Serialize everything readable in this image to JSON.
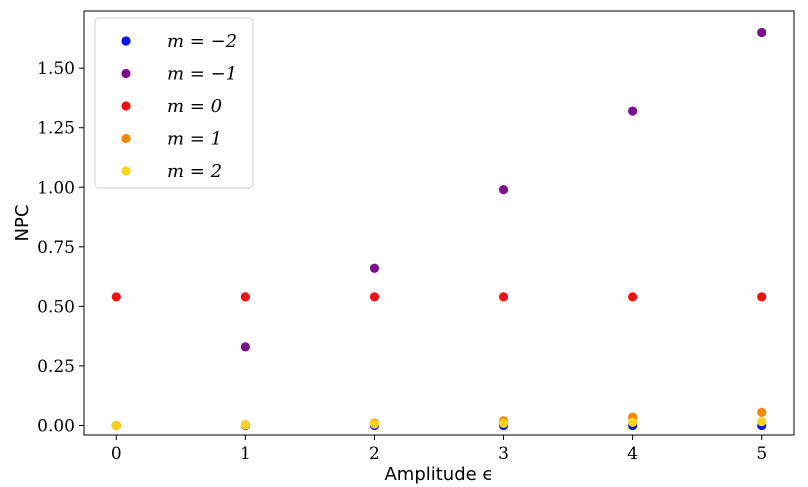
{
  "chart_data": {
    "type": "scatter",
    "xlabel": "Amplitude ϵ",
    "ylabel": "NPC",
    "xlim": [
      -0.25,
      5.25
    ],
    "ylim": [
      -0.04,
      1.74
    ],
    "x_ticks": [
      0,
      1,
      2,
      3,
      4,
      5
    ],
    "x_tick_labels": [
      "0",
      "1",
      "2",
      "3",
      "4",
      "5"
    ],
    "y_ticks": [
      0.0,
      0.25,
      0.5,
      0.75,
      1.0,
      1.25,
      1.5
    ],
    "y_tick_labels": [
      "0.00",
      "0.25",
      "0.50",
      "0.75",
      "1.00",
      "1.25",
      "1.50"
    ],
    "grid": false,
    "legend_position": "top-left",
    "series": [
      {
        "name": "m = −2",
        "color": "#0a14e6",
        "x": [
          0,
          1,
          2,
          3,
          4,
          5
        ],
        "y": [
          0.0,
          0.0,
          0.0,
          0.0,
          0.0,
          0.0
        ]
      },
      {
        "name": "m = −1",
        "color": "#7a0e8c",
        "x": [
          0,
          1,
          2,
          3,
          4,
          5
        ],
        "y": [
          0.0,
          0.33,
          0.66,
          0.99,
          1.32,
          1.65
        ]
      },
      {
        "name": "m = 0",
        "color": "#f01010",
        "x": [
          0,
          1,
          2,
          3,
          4,
          5
        ],
        "y": [
          0.54,
          0.54,
          0.54,
          0.54,
          0.54,
          0.54
        ]
      },
      {
        "name": "m = 1",
        "color": "#f38a0d",
        "x": [
          0,
          1,
          2,
          3,
          4,
          5
        ],
        "y": [
          0.0,
          0.003,
          0.01,
          0.02,
          0.035,
          0.055
        ]
      },
      {
        "name": "m = 2",
        "color": "#f9d41a",
        "x": [
          0,
          1,
          2,
          3,
          4,
          5
        ],
        "y": [
          0.0,
          0.002,
          0.006,
          0.009,
          0.013,
          0.016
        ]
      }
    ]
  }
}
